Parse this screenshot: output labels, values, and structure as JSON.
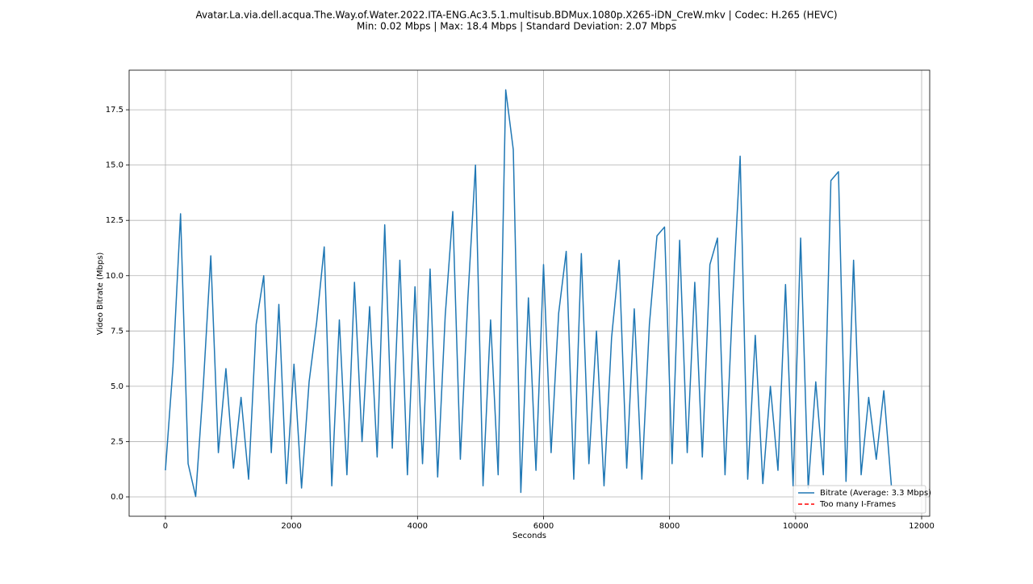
{
  "chart_data": {
    "type": "line",
    "title": "Avatar.La.via.dell.acqua.The.Way.of.Water.2022.ITA-ENG.Ac3.5.1.multisub.BDMux.1080p.X265-iDN_CreW.mkv | Codec: H.265 (HEVC)",
    "subtitle": "Min: 0.02 Mbps | Max: 18.4 Mbps | Standard Deviation: 2.07 Mbps",
    "x_label": "Seconds",
    "y_label": "Video Bitrate (Mbps)",
    "x": [
      0,
      120,
      240,
      360,
      480,
      600,
      720,
      840,
      960,
      1080,
      1200,
      1320,
      1440,
      1560,
      1680,
      1800,
      1920,
      2040,
      2160,
      2280,
      2400,
      2520,
      2640,
      2760,
      2880,
      3000,
      3120,
      3240,
      3360,
      3480,
      3600,
      3720,
      3840,
      3960,
      4080,
      4200,
      4320,
      4440,
      4560,
      4680,
      4800,
      4920,
      5040,
      5160,
      5280,
      5400,
      5520,
      5640,
      5760,
      5880,
      6000,
      6120,
      6240,
      6360,
      6480,
      6600,
      6720,
      6840,
      6960,
      7080,
      7200,
      7320,
      7440,
      7560,
      7680,
      7800,
      7920,
      8040,
      8160,
      8280,
      8400,
      8520,
      8640,
      8760,
      8880,
      9000,
      9120,
      9240,
      9360,
      9480,
      9600,
      9720,
      9840,
      9960,
      10080,
      10200,
      10320,
      10440,
      10560,
      10680,
      10800,
      10920,
      11040,
      11160,
      11280,
      11400,
      11520
    ],
    "series": [
      {
        "name": "Bitrate (Average: 3.3 Mbps)",
        "color": "#1f77b4",
        "dash": "solid",
        "values": [
          1.2,
          5.9,
          12.8,
          1.5,
          0.02,
          5.0,
          10.9,
          2.0,
          5.8,
          1.3,
          4.5,
          0.8,
          7.8,
          10.0,
          2.0,
          8.7,
          0.6,
          6.0,
          0.4,
          5.2,
          7.9,
          11.3,
          0.5,
          8.0,
          1.0,
          9.7,
          2.5,
          8.6,
          1.8,
          12.3,
          2.2,
          10.7,
          1.0,
          9.5,
          1.5,
          10.3,
          0.9,
          8.2,
          12.9,
          1.7,
          9.0,
          15.0,
          0.5,
          8.0,
          1.0,
          18.4,
          15.7,
          0.2,
          9.0,
          1.2,
          10.5,
          2.0,
          8.3,
          11.1,
          0.8,
          11.0,
          1.5,
          7.5,
          0.5,
          7.2,
          10.7,
          1.3,
          8.5,
          0.8,
          7.8,
          11.8,
          12.2,
          1.5,
          11.6,
          2.0,
          9.7,
          1.8,
          10.5,
          11.7,
          1.0,
          8.8,
          15.4,
          0.8,
          7.3,
          0.6,
          5.0,
          1.2,
          9.6,
          0.5,
          11.7,
          0.4,
          5.2,
          1.0,
          14.3,
          14.7,
          0.7,
          10.7,
          1.0,
          4.5,
          1.7,
          4.8,
          0.5
        ]
      },
      {
        "name": "Too many I-Frames",
        "color": "#ff0000",
        "dash": "dashed",
        "values": [
          null,
          null,
          null,
          null,
          null,
          null,
          null,
          null,
          null,
          null,
          null,
          null,
          null,
          null,
          null,
          null,
          null,
          null,
          null,
          null,
          null,
          null,
          null,
          null,
          null,
          null,
          null,
          null,
          null,
          null,
          null,
          null,
          null,
          null,
          null,
          null,
          null,
          null,
          null,
          null,
          null,
          null,
          null,
          null,
          null,
          null,
          null,
          null,
          null,
          null,
          null,
          null,
          null,
          null,
          null,
          null,
          null,
          null,
          null,
          null,
          null,
          null,
          null,
          null,
          null,
          null,
          null,
          null,
          null,
          null,
          null,
          null,
          null,
          null,
          null,
          null,
          null,
          null,
          null,
          null,
          null,
          null,
          null,
          null,
          null,
          null,
          null,
          null,
          null,
          null,
          null,
          null,
          null,
          null,
          null,
          null,
          null
        ]
      }
    ],
    "xlim": [
      -576,
      12128
    ],
    "ylim": [
      -0.875,
      19.29
    ],
    "xticks": [
      0,
      2000,
      4000,
      6000,
      8000,
      10000,
      12000
    ],
    "yticks": [
      {
        "value": 0,
        "label": "0.0"
      },
      2.5,
      {
        "value": 5,
        "label": "5.0"
      },
      7.5,
      {
        "value": 10,
        "label": "10.0"
      },
      12.5,
      {
        "value": 15,
        "label": "15.0"
      },
      17.5
    ],
    "grid": true,
    "legend": "lower right"
  }
}
